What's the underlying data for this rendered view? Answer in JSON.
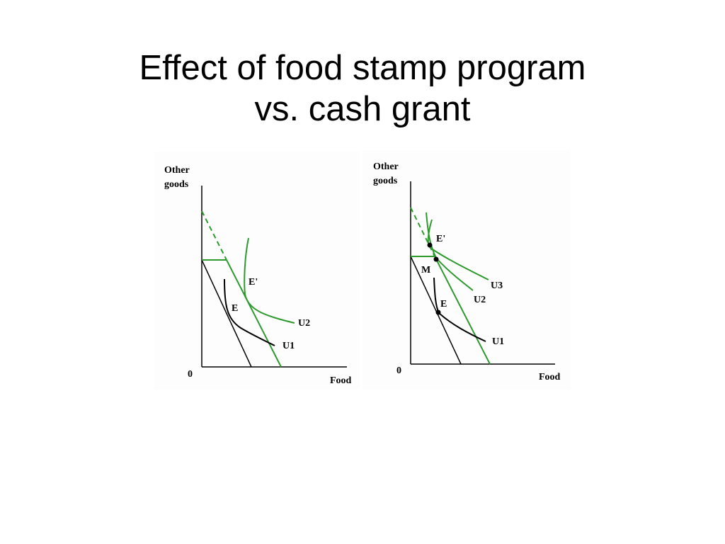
{
  "title": {
    "line1": "Effect of food stamp program",
    "line2": "vs. cash grant"
  },
  "colors": {
    "green": "#2e9a2e",
    "black": "#000000"
  },
  "diagrams": {
    "left": {
      "y_label_1": "Other",
      "y_label_2": "goods",
      "x_label": "Food",
      "origin": "0",
      "point_e": "E",
      "point_e_prime": "E'",
      "curve_u1": "U1",
      "curve_u2": "U2"
    },
    "right": {
      "y_label_1": "Other",
      "y_label_2": "goods",
      "x_label": "Food",
      "origin": "0",
      "point_e": "E",
      "point_e_prime": "E'",
      "point_m": "M",
      "curve_u1": "U1",
      "curve_u2": "U2",
      "curve_u3": "U3"
    }
  }
}
